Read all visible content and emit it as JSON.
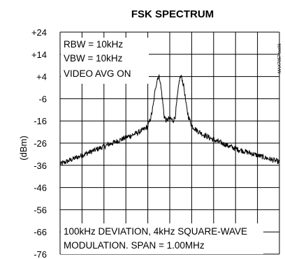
{
  "chart_data": {
    "type": "line",
    "title": "FSK SPECTRUM",
    "ylabel": "(dBm)",
    "xlabel": "",
    "ylim": [
      -76,
      24
    ],
    "yticks": [
      "+24",
      "+14",
      "+4",
      "-6",
      "-16",
      "-26",
      "-36",
      "-46",
      "-56",
      "-66",
      "-76"
    ],
    "x_divisions": 10,
    "xlim": [
      -0.5,
      0.5
    ],
    "x_unit": "MHz offset from center (span 1.00MHz)",
    "grid": true,
    "settings": [
      "RBW = 10kHz",
      "VBW = 10kHz",
      "VIDEO AVG ON"
    ],
    "notes": [
      "100kHz DEVIATION, 4kHz SQUARE-WAVE",
      "MODULATION. SPAN = 1.00MHz"
    ],
    "figure_code": "MAX7057 toc06",
    "series": [
      {
        "x": [
          -0.5,
          -0.45,
          -0.4,
          -0.35,
          -0.3,
          -0.25,
          -0.2,
          -0.15,
          -0.12,
          -0.1,
          -0.085,
          -0.075,
          -0.065,
          -0.055,
          -0.05,
          -0.045,
          -0.035,
          -0.025,
          -0.015,
          -0.005,
          0.0,
          0.005,
          0.015,
          0.025,
          0.035,
          0.045,
          0.05,
          0.055,
          0.065,
          0.075,
          0.085,
          0.1,
          0.12,
          0.15,
          0.2,
          0.25,
          0.3,
          0.35,
          0.4,
          0.45,
          0.5
        ],
        "y": [
          -35.5,
          -33.5,
          -31.5,
          -29.5,
          -27.5,
          -25.5,
          -23.5,
          -21.5,
          -20,
          -18.5,
          -14,
          -9,
          -1,
          3.5,
          4,
          3,
          -5,
          -14,
          -16,
          -15,
          -15,
          -15,
          -16,
          -14,
          -5,
          3,
          4,
          3.5,
          -1,
          -9,
          -14,
          -18,
          -20,
          -22,
          -24.5,
          -26.5,
          -28.5,
          -30,
          -31.5,
          -33,
          -34.5
        ]
      }
    ]
  }
}
